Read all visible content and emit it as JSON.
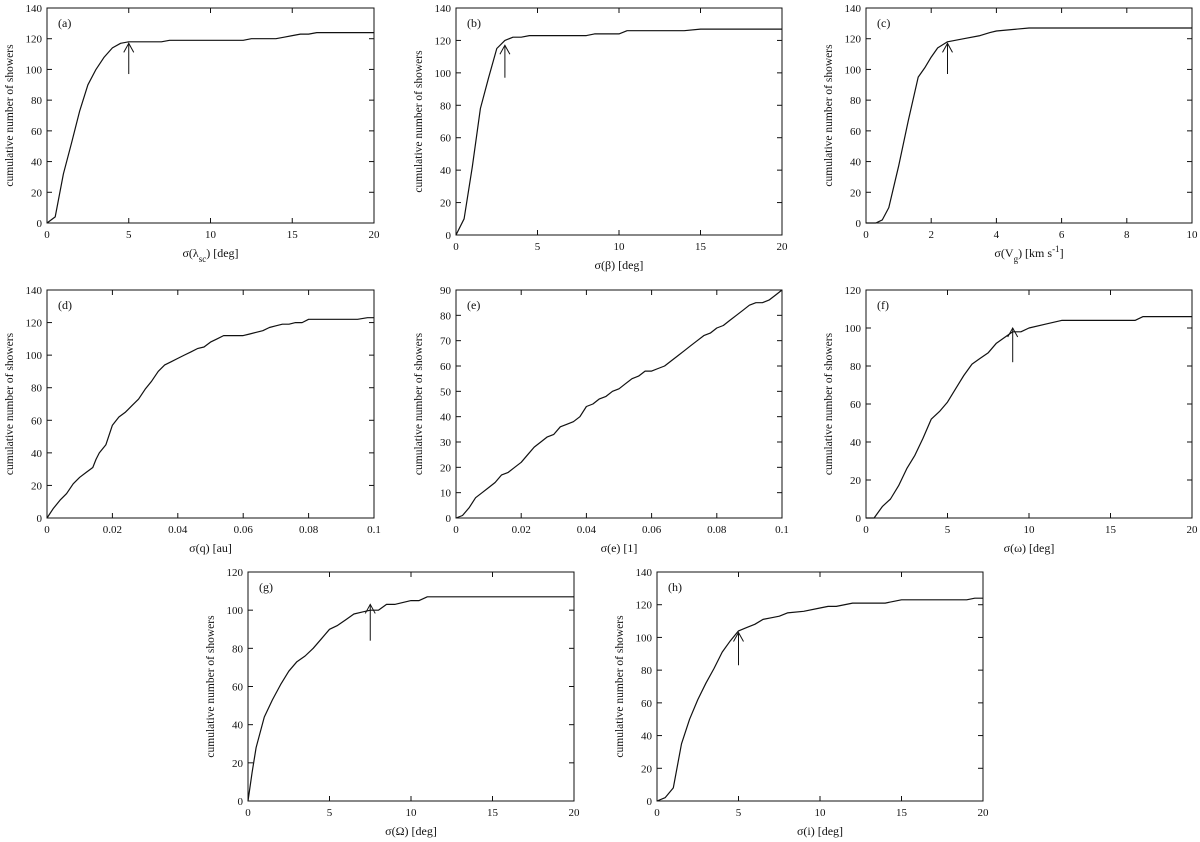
{
  "chart_data": [
    {
      "type": "line",
      "label": "(a)",
      "xlabel": "σ(λ",
      "xlabel_sub": "sc",
      "xlabel_tail": ") [deg]",
      "ylabel": "cumulative number of showers",
      "xlim": [
        0,
        20
      ],
      "ylim": [
        0,
        140
      ],
      "xticks": [
        0,
        5,
        10,
        15,
        20
      ],
      "yticks": [
        0,
        20,
        40,
        60,
        80,
        100,
        120,
        140
      ],
      "x": [
        0,
        0.5,
        1,
        1.5,
        2,
        2.5,
        3,
        3.5,
        4,
        4.5,
        5,
        6,
        7,
        7.5,
        8,
        9,
        10,
        11,
        12,
        12.5,
        13,
        14,
        14.5,
        15,
        15.5,
        16,
        16.5,
        17,
        18,
        19,
        20
      ],
      "y": [
        0,
        4,
        32,
        52,
        73,
        90,
        100,
        108,
        114,
        117,
        118,
        118,
        118,
        119,
        119,
        119,
        119,
        119,
        119,
        120,
        120,
        120,
        121,
        122,
        123,
        123,
        124,
        124,
        124,
        124,
        124
      ],
      "arrow": {
        "x": 5,
        "y_tail": 97,
        "y_head": 117
      }
    },
    {
      "type": "line",
      "label": "(b)",
      "xlabel": "σ(β) [deg]",
      "ylabel": "cumulative number of showers",
      "xlim": [
        0,
        20
      ],
      "ylim": [
        0,
        140
      ],
      "xticks": [
        0,
        5,
        10,
        15,
        20
      ],
      "yticks": [
        0,
        20,
        40,
        60,
        80,
        100,
        120,
        140
      ],
      "x": [
        0,
        0.5,
        1,
        1.5,
        2,
        2.5,
        3,
        3.5,
        4,
        4.5,
        5,
        6,
        7,
        8,
        8.5,
        9,
        10,
        10.5,
        11,
        12,
        13,
        14,
        15,
        16,
        17,
        18,
        19,
        20
      ],
      "y": [
        0,
        10,
        42,
        78,
        97,
        115,
        120,
        122,
        122,
        123,
        123,
        123,
        123,
        123,
        124,
        124,
        124,
        126,
        126,
        126,
        126,
        126,
        127,
        127,
        127,
        127,
        127,
        127
      ],
      "arrow": {
        "x": 3,
        "y_tail": 97,
        "y_head": 117
      }
    },
    {
      "type": "line",
      "label": "(c)",
      "xlabel": "σ(V",
      "xlabel_sub": "g",
      "xlabel_tail": ") [km s",
      "xlabel_sup": "-1",
      "xlabel_end": "]",
      "ylabel": "cumulative number of showers",
      "xlim": [
        0,
        10
      ],
      "ylim": [
        0,
        140
      ],
      "xticks": [
        0,
        2,
        4,
        6,
        8,
        10
      ],
      "yticks": [
        0,
        20,
        40,
        60,
        80,
        100,
        120,
        140
      ],
      "x": [
        0,
        0.3,
        0.5,
        0.7,
        1,
        1.3,
        1.6,
        1.8,
        2,
        2.2,
        2.5,
        3,
        3.5,
        3.8,
        4,
        4.5,
        5,
        6,
        7,
        8,
        9,
        10
      ],
      "y": [
        0,
        0,
        2,
        10,
        37,
        67,
        95,
        101,
        108,
        114,
        118,
        120,
        122,
        124,
        125,
        126,
        127,
        127,
        127,
        127,
        127,
        127
      ],
      "arrow": {
        "x": 2.5,
        "y_tail": 97,
        "y_head": 117
      }
    },
    {
      "type": "line",
      "label": "(d)",
      "xlabel": "σ(q) [au]",
      "ylabel": "cumulative number of showers",
      "xlim": [
        0,
        0.1
      ],
      "ylim": [
        0,
        140
      ],
      "xticks": [
        0,
        0.02,
        0.04,
        0.06,
        0.08,
        0.1
      ],
      "ytick_labels_x": [
        "0",
        "0.02",
        "0.04",
        "0.06",
        "0.08",
        "0.1"
      ],
      "yticks": [
        0,
        20,
        40,
        60,
        80,
        100,
        120,
        140
      ],
      "x": [
        0,
        0.002,
        0.004,
        0.006,
        0.008,
        0.01,
        0.012,
        0.014,
        0.015,
        0.016,
        0.018,
        0.02,
        0.022,
        0.024,
        0.026,
        0.028,
        0.03,
        0.032,
        0.034,
        0.036,
        0.038,
        0.04,
        0.042,
        0.044,
        0.046,
        0.048,
        0.05,
        0.052,
        0.054,
        0.056,
        0.058,
        0.06,
        0.062,
        0.064,
        0.066,
        0.068,
        0.07,
        0.072,
        0.074,
        0.076,
        0.078,
        0.08,
        0.085,
        0.09,
        0.095,
        0.098,
        0.1
      ],
      "y": [
        0,
        6,
        11,
        15,
        21,
        25,
        28,
        31,
        36,
        40,
        45,
        57,
        62,
        65,
        69,
        73,
        79,
        84,
        90,
        94,
        96,
        98,
        100,
        102,
        104,
        105,
        108,
        110,
        112,
        112,
        112,
        112,
        113,
        114,
        115,
        117,
        118,
        119,
        119,
        120,
        120,
        122,
        122,
        122,
        122,
        123,
        123
      ]
    },
    {
      "type": "line",
      "label": "(e)",
      "xlabel": "σ(e) [1]",
      "ylabel": "cumulative number of showers",
      "xlim": [
        0,
        0.1
      ],
      "ylim": [
        0,
        90
      ],
      "xticks": [
        0,
        0.02,
        0.04,
        0.06,
        0.08,
        0.1
      ],
      "ytick_labels_x": [
        "0",
        "0.02",
        "0.04",
        "0.06",
        "0.08",
        "0.1"
      ],
      "yticks": [
        0,
        10,
        20,
        30,
        40,
        50,
        60,
        70,
        80,
        90
      ],
      "x": [
        0,
        0.002,
        0.004,
        0.006,
        0.008,
        0.01,
        0.012,
        0.014,
        0.016,
        0.018,
        0.02,
        0.022,
        0.024,
        0.026,
        0.028,
        0.03,
        0.032,
        0.034,
        0.036,
        0.038,
        0.04,
        0.042,
        0.044,
        0.046,
        0.048,
        0.05,
        0.052,
        0.054,
        0.056,
        0.058,
        0.06,
        0.062,
        0.064,
        0.066,
        0.068,
        0.07,
        0.072,
        0.074,
        0.076,
        0.078,
        0.08,
        0.082,
        0.084,
        0.086,
        0.088,
        0.09,
        0.092,
        0.094,
        0.096,
        0.098,
        0.1
      ],
      "y": [
        0,
        1,
        4,
        8,
        10,
        12,
        14,
        17,
        18,
        20,
        22,
        25,
        28,
        30,
        32,
        33,
        36,
        37,
        38,
        40,
        44,
        45,
        47,
        48,
        50,
        51,
        53,
        55,
        56,
        58,
        58,
        59,
        60,
        62,
        64,
        66,
        68,
        70,
        72,
        73,
        75,
        76,
        78,
        80,
        82,
        84,
        85,
        85,
        86,
        88,
        90
      ]
    },
    {
      "type": "line",
      "label": "(f)",
      "xlabel": "σ(ω) [deg]",
      "ylabel": "cumulative number of showers",
      "xlim": [
        0,
        20
      ],
      "ylim": [
        0,
        120
      ],
      "xticks": [
        0,
        5,
        10,
        15,
        20
      ],
      "yticks": [
        0,
        20,
        40,
        60,
        80,
        100,
        120
      ],
      "x": [
        0,
        0.5,
        1,
        1.5,
        2,
        2.5,
        3,
        3.5,
        4,
        4.5,
        5,
        5.5,
        6,
        6.5,
        7,
        7.5,
        8,
        8.5,
        9,
        9.5,
        10,
        11,
        12,
        13,
        14,
        15,
        16,
        16.5,
        17,
        18,
        19,
        20
      ],
      "y": [
        0,
        0,
        6,
        10,
        17,
        26,
        33,
        42,
        52,
        56,
        61,
        68,
        75,
        81,
        84,
        87,
        92,
        95,
        98,
        98,
        100,
        102,
        104,
        104,
        104,
        104,
        104,
        104,
        106,
        106,
        106,
        106
      ],
      "arrow": {
        "x": 9,
        "y_tail": 82,
        "y_head": 100
      }
    },
    {
      "type": "line",
      "label": "(g)",
      "xlabel": "σ(Ω) [deg]",
      "ylabel": "cumulative number of showers",
      "xlim": [
        0,
        20
      ],
      "ylim": [
        0,
        120
      ],
      "xticks": [
        0,
        5,
        10,
        15,
        20
      ],
      "yticks": [
        0,
        20,
        40,
        60,
        80,
        100,
        120
      ],
      "x": [
        0,
        0.25,
        0.5,
        1,
        1.5,
        2,
        2.5,
        3,
        3.5,
        4,
        4.5,
        5,
        5.5,
        6,
        6.5,
        7,
        7.5,
        8,
        8.5,
        9,
        10,
        10.5,
        11,
        12,
        13,
        14,
        15,
        16,
        17,
        18,
        19,
        20
      ],
      "y": [
        0,
        15,
        28,
        44,
        53,
        61,
        68,
        73,
        76,
        80,
        85,
        90,
        92,
        95,
        98,
        99,
        100,
        100,
        103,
        103,
        105,
        105,
        107,
        107,
        107,
        107,
        107,
        107,
        107,
        107,
        107,
        107
      ],
      "arrow": {
        "x": 7.5,
        "y_tail": 84,
        "y_head": 103
      }
    },
    {
      "type": "line",
      "label": "(h)",
      "xlabel": "σ(i) [deg]",
      "ylabel": "cumulative number of showers",
      "xlim": [
        0,
        20
      ],
      "ylim": [
        0,
        140
      ],
      "xticks": [
        0,
        5,
        10,
        15,
        20
      ],
      "yticks": [
        0,
        20,
        40,
        60,
        80,
        100,
        120,
        140
      ],
      "x": [
        0,
        0.5,
        1,
        1.5,
        2,
        2.5,
        3,
        3.5,
        4,
        4.5,
        5,
        5.5,
        6,
        6.5,
        7,
        7.5,
        8,
        9,
        10,
        10.5,
        11,
        12,
        13,
        14,
        14.5,
        15,
        16,
        17,
        18,
        19,
        19.5,
        20
      ],
      "y": [
        0,
        2,
        8,
        35,
        50,
        62,
        72,
        81,
        91,
        98,
        104,
        106,
        108,
        111,
        112,
        113,
        115,
        116,
        118,
        119,
        119,
        121,
        121,
        121,
        122,
        123,
        123,
        123,
        123,
        123,
        124,
        124
      ],
      "arrow": {
        "x": 5,
        "y_tail": 83,
        "y_head": 103
      }
    }
  ]
}
